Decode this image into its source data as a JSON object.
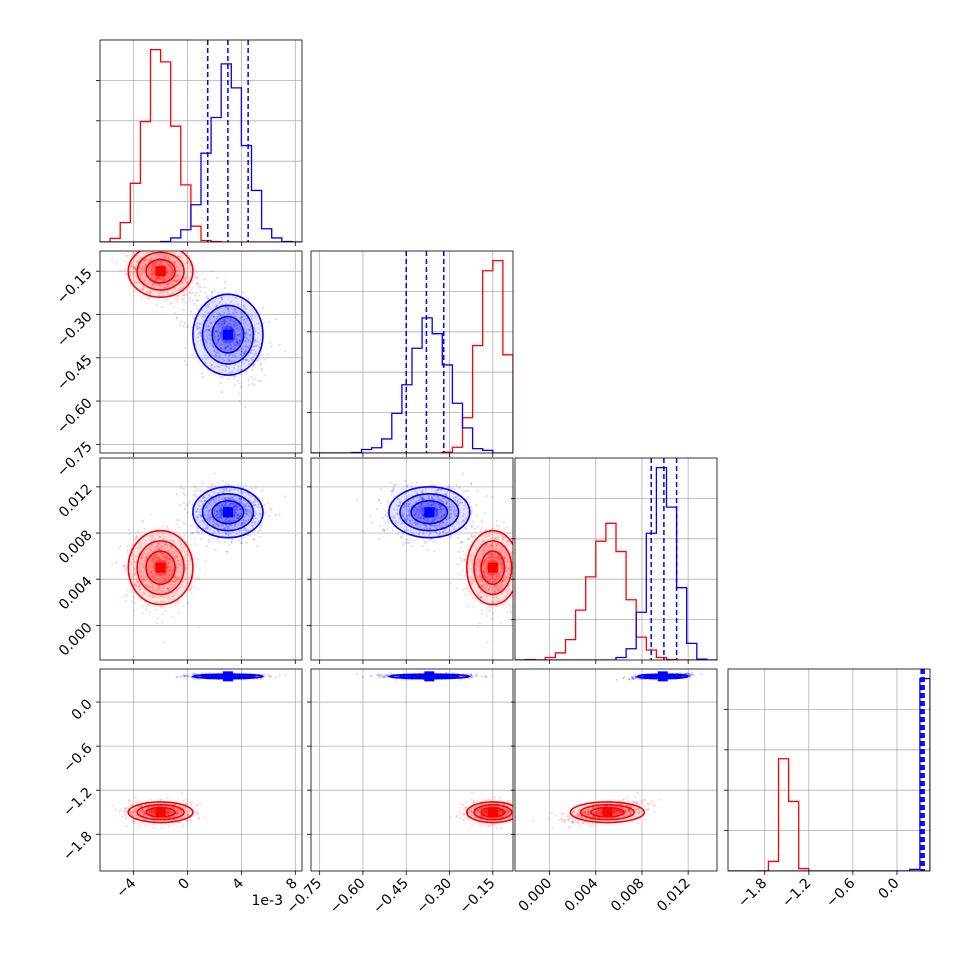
{
  "chart_data": {
    "type": "corner",
    "offset_text": "1e-3",
    "colors": {
      "series_a": "#ff0000",
      "series_b": "#0000ff"
    },
    "grid": true,
    "params": [
      {
        "id": "p0",
        "range": [
          -6.5,
          8.5
        ],
        "ticks": [
          -4,
          0,
          4,
          8
        ],
        "tick_labels": [
          "−4",
          "0",
          "4",
          "8"
        ]
      },
      {
        "id": "p1",
        "range": [
          -0.78,
          -0.08
        ],
        "ticks": [
          -0.75,
          -0.6,
          -0.45,
          -0.3,
          -0.15
        ],
        "tick_labels": [
          "−0.75",
          "−0.60",
          "−0.45",
          "−0.30",
          "−0.15"
        ]
      },
      {
        "id": "p2",
        "range": [
          -0.003,
          0.0145
        ],
        "ticks": [
          0.0,
          0.004,
          0.008,
          0.012
        ],
        "tick_labels": [
          "0.000",
          "0.004",
          "0.008",
          "0.012"
        ]
      },
      {
        "id": "p3",
        "range": [
          -2.3,
          0.45
        ],
        "ticks": [
          -1.8,
          -1.2,
          -0.6,
          0.0
        ],
        "tick_labels": [
          "−1.8",
          "−1.2",
          "−0.6",
          "0.0"
        ]
      }
    ],
    "series": [
      {
        "name": "",
        "color": "#ff0000",
        "means": [
          -2.0,
          -0.15,
          0.005,
          -1.5
        ],
        "sds": [
          1.2,
          0.045,
          0.0016,
          0.07
        ],
        "quantiles": null
      },
      {
        "name": "",
        "color": "#0000ff",
        "means": [
          3.0,
          -0.37,
          0.0098,
          0.35
        ],
        "sds": [
          1.3,
          0.07,
          0.0011,
          0.015
        ],
        "quantiles": [
          [
            1.5,
            3.0,
            4.5
          ],
          [
            -0.45,
            -0.38,
            -0.32
          ],
          [
            0.0088,
            0.0099,
            0.011
          ],
          [
            0.33,
            0.35,
            0.37
          ]
        ]
      }
    ]
  }
}
